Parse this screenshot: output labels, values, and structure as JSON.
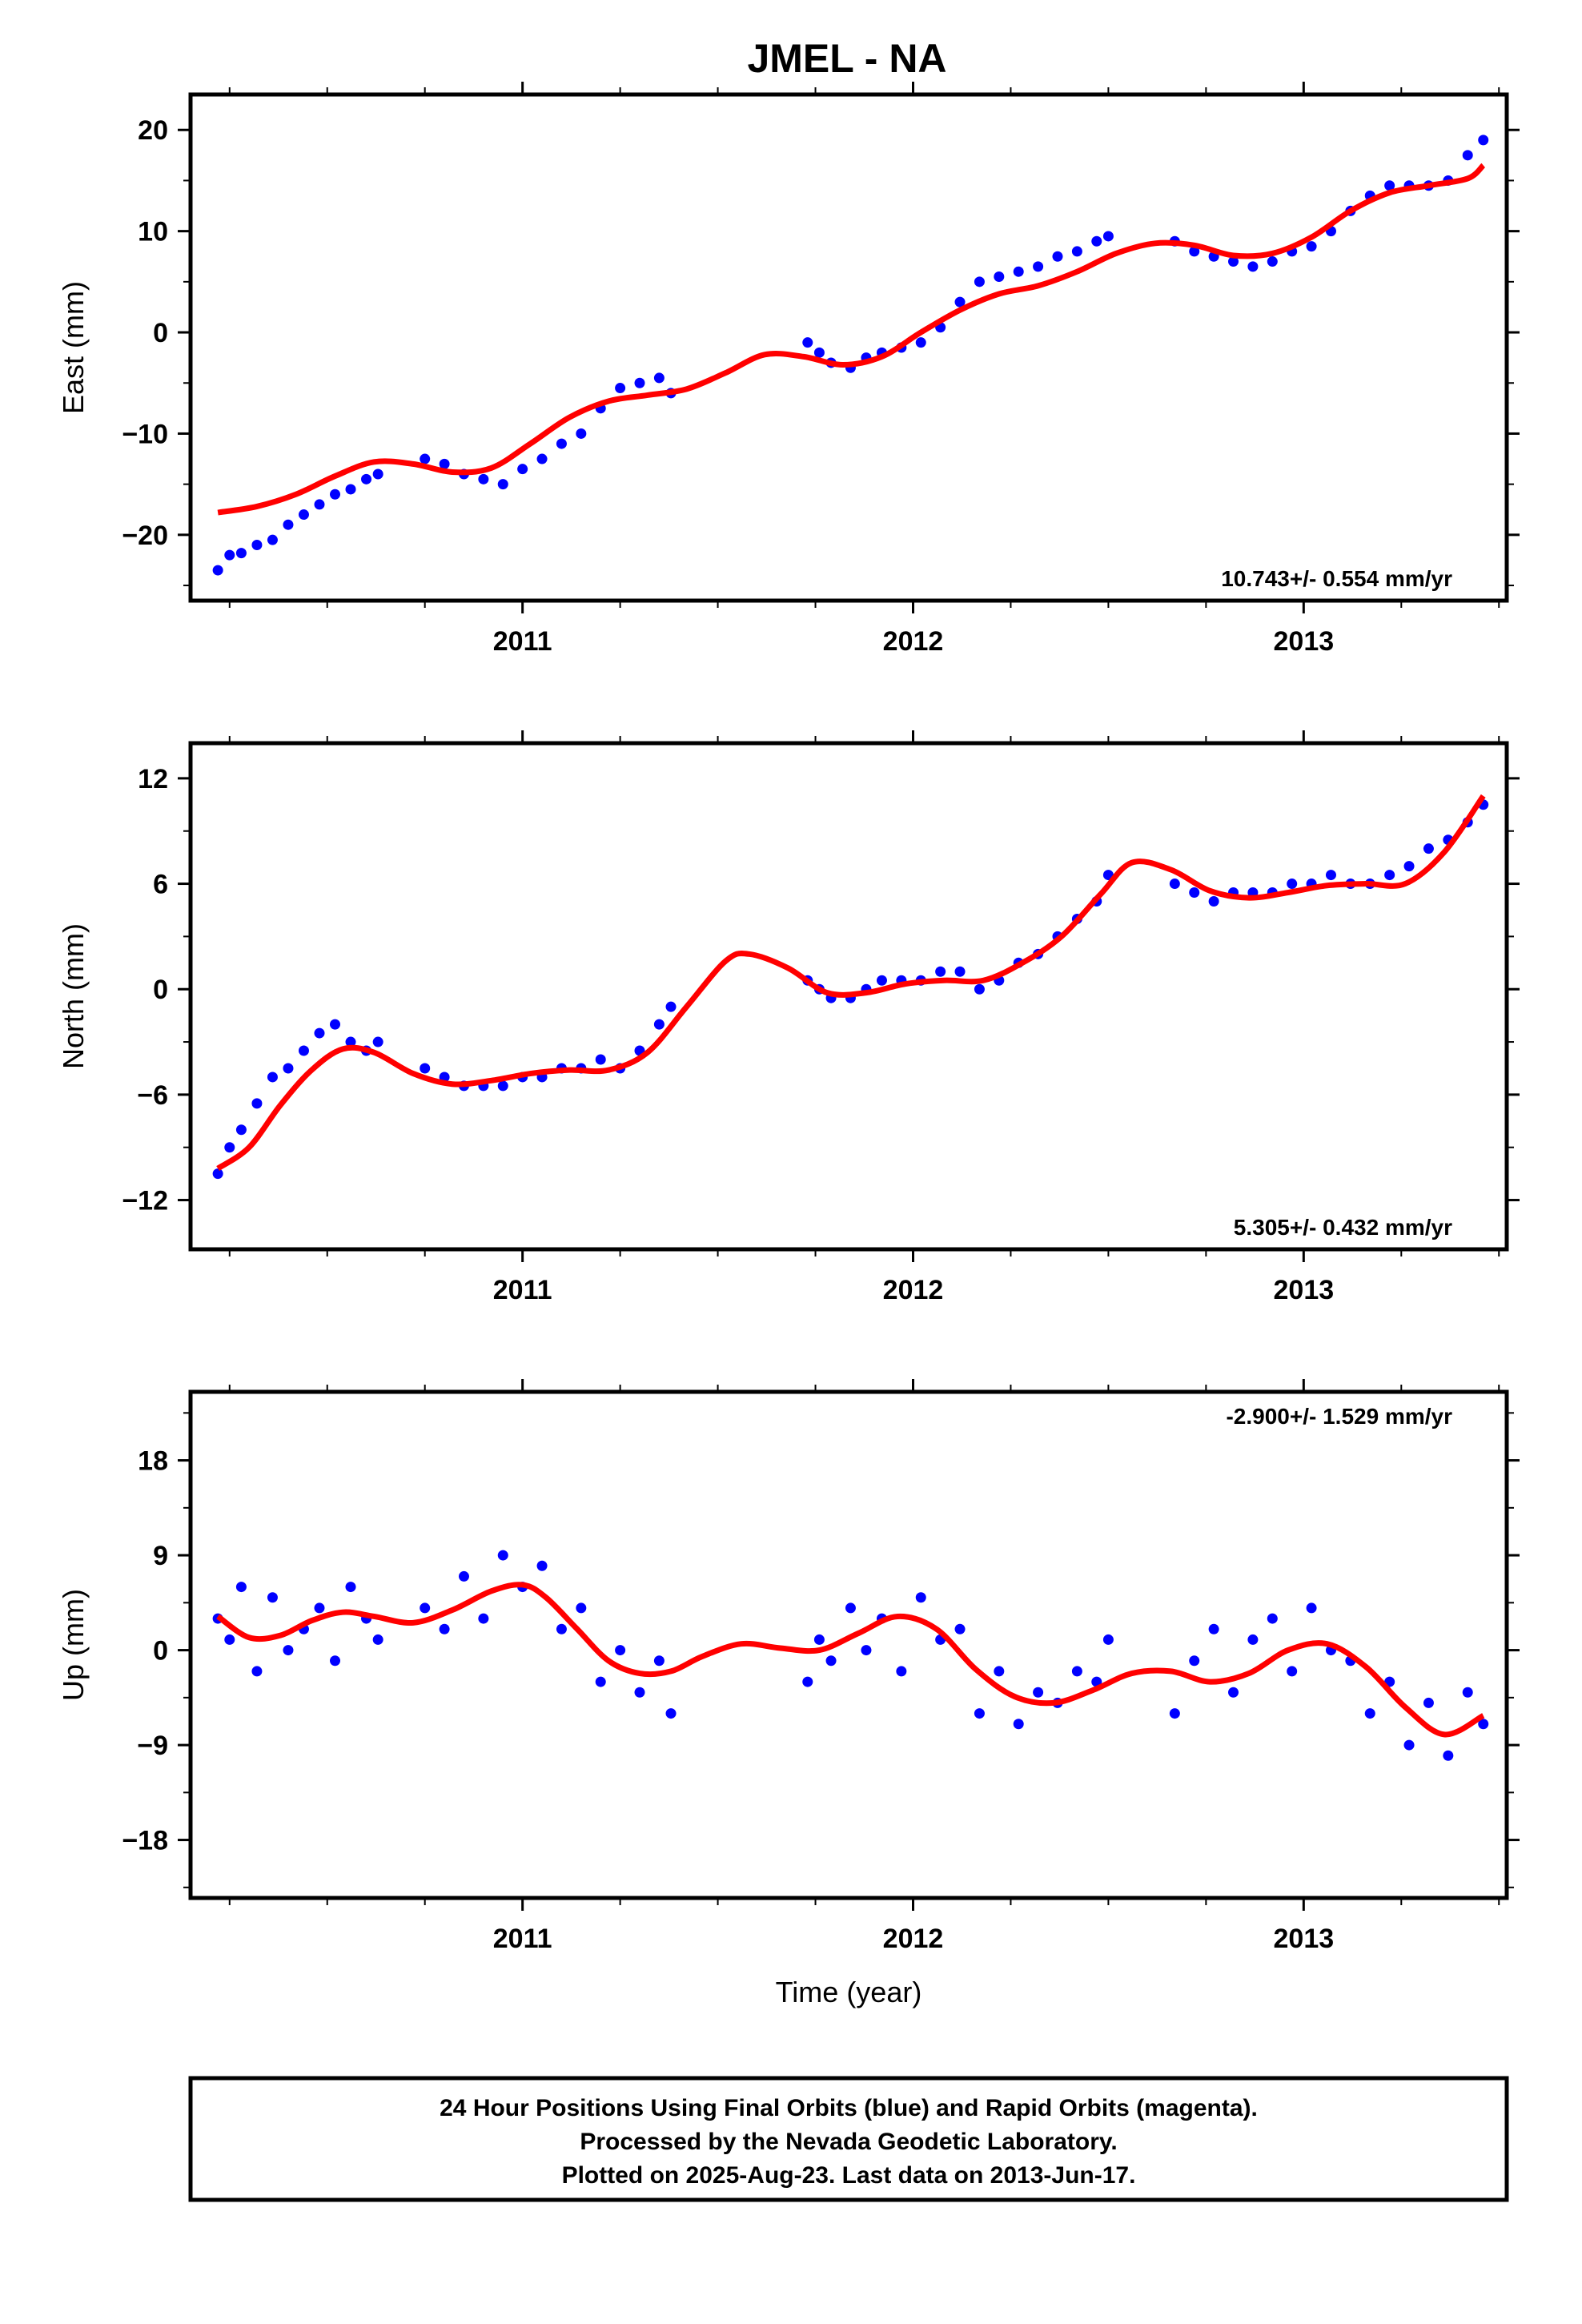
{
  "chart_data": [
    {
      "type": "scatter",
      "title": "JMEL - NA",
      "ylabel": "East (mm)",
      "xlabel": "",
      "xlim": [
        2010.15,
        2013.52
      ],
      "ylim": [
        -26.5,
        23.5
      ],
      "xticks": [
        2011,
        2012,
        2013
      ],
      "xtick_labels": [
        "2011",
        "2012",
        "2013"
      ],
      "yticks": [
        -20,
        -10,
        0,
        10,
        20
      ],
      "ytick_labels": [
        "−20",
        "−10",
        "0",
        "10",
        "20"
      ],
      "rate_label": "10.743+/- 0.554 mm/yr",
      "rate_position": "bottom-right",
      "series": [
        {
          "color": "#0000ff",
          "x": [
            2010.22,
            2010.25,
            2010.28,
            2010.32,
            2010.36,
            2010.4,
            2010.44,
            2010.48,
            2010.52,
            2010.56,
            2010.6,
            2010.63,
            2010.75,
            2010.8,
            2010.85,
            2010.9,
            2010.95,
            2011.0,
            2011.05,
            2011.1,
            2011.15,
            2011.2,
            2011.25,
            2011.3,
            2011.35,
            2011.38,
            2011.73,
            2011.76,
            2011.79,
            2011.84,
            2011.88,
            2011.92,
            2011.97,
            2012.02,
            2012.07,
            2012.12,
            2012.17,
            2012.22,
            2012.27,
            2012.32,
            2012.37,
            2012.42,
            2012.47,
            2012.5,
            2012.67,
            2012.72,
            2012.77,
            2012.82,
            2012.87,
            2012.92,
            2012.97,
            2013.02,
            2013.07,
            2013.12,
            2013.17,
            2013.22,
            2013.27,
            2013.32,
            2013.37,
            2013.42,
            2013.46
          ],
          "y": [
            -23.5,
            -22.0,
            -21.8,
            -21.0,
            -20.5,
            -19.0,
            -18.0,
            -17.0,
            -16.0,
            -15.5,
            -14.5,
            -14.0,
            -12.5,
            -13.0,
            -14.0,
            -14.5,
            -15.0,
            -13.5,
            -12.5,
            -11.0,
            -10.0,
            -7.5,
            -5.5,
            -5.0,
            -4.5,
            -6.0,
            -1.0,
            -2.0,
            -3.0,
            -3.5,
            -2.5,
            -2.0,
            -1.5,
            -1.0,
            0.5,
            3.0,
            5.0,
            5.5,
            6.0,
            6.5,
            7.5,
            8.0,
            9.0,
            9.5,
            9.0,
            8.0,
            7.5,
            7.0,
            6.5,
            7.0,
            8.0,
            8.5,
            10.0,
            12.0,
            13.5,
            14.5,
            14.5,
            14.5,
            15.0,
            17.5,
            19.0
          ]
        },
        {
          "color": "#ff0000",
          "x": [
            2010.22,
            2010.32,
            2010.42,
            2010.52,
            2010.62,
            2010.72,
            2010.82,
            2010.92,
            2011.02,
            2011.12,
            2011.22,
            2011.32,
            2011.42,
            2011.52,
            2011.62,
            2011.72,
            2011.82,
            2011.92,
            2012.02,
            2012.12,
            2012.22,
            2012.32,
            2012.42,
            2012.52,
            2012.62,
            2012.72,
            2012.82,
            2012.92,
            2013.02,
            2013.12,
            2013.22,
            2013.32,
            2013.42,
            2013.46
          ],
          "y": [
            -17.8,
            -17.2,
            -16.0,
            -14.2,
            -12.8,
            -13.0,
            -13.8,
            -13.4,
            -11.0,
            -8.4,
            -6.8,
            -6.2,
            -5.6,
            -4.0,
            -2.2,
            -2.4,
            -3.2,
            -2.4,
            0.0,
            2.2,
            3.8,
            4.6,
            6.0,
            7.8,
            8.8,
            8.6,
            7.6,
            7.8,
            9.4,
            12.0,
            13.8,
            14.5,
            15.2,
            16.5
          ]
        }
      ]
    },
    {
      "type": "scatter",
      "title": "",
      "ylabel": "North (mm)",
      "xlabel": "",
      "xlim": [
        2010.15,
        2013.52
      ],
      "ylim": [
        -14.8,
        14.0
      ],
      "xticks": [
        2011,
        2012,
        2013
      ],
      "xtick_labels": [
        "2011",
        "2012",
        "2013"
      ],
      "yticks": [
        -12,
        -6,
        0,
        6,
        12
      ],
      "ytick_labels": [
        "−12",
        "−6",
        "0",
        "6",
        "12"
      ],
      "rate_label": "5.305+/- 0.432 mm/yr",
      "rate_position": "bottom-right",
      "series": [
        {
          "color": "#0000ff",
          "x": [
            2010.22,
            2010.25,
            2010.28,
            2010.32,
            2010.36,
            2010.4,
            2010.44,
            2010.48,
            2010.52,
            2010.56,
            2010.6,
            2010.63,
            2010.75,
            2010.8,
            2010.85,
            2010.9,
            2010.95,
            2011.0,
            2011.05,
            2011.1,
            2011.15,
            2011.2,
            2011.25,
            2011.3,
            2011.35,
            2011.38,
            2011.73,
            2011.76,
            2011.79,
            2011.84,
            2011.88,
            2011.92,
            2011.97,
            2012.02,
            2012.07,
            2012.12,
            2012.17,
            2012.22,
            2012.27,
            2012.32,
            2012.37,
            2012.42,
            2012.47,
            2012.5,
            2012.67,
            2012.72,
            2012.77,
            2012.82,
            2012.87,
            2012.92,
            2012.97,
            2013.02,
            2013.07,
            2013.12,
            2013.17,
            2013.22,
            2013.27,
            2013.32,
            2013.37,
            2013.42,
            2013.46
          ],
          "y": [
            -10.5,
            -9.0,
            -8.0,
            -6.5,
            -5.0,
            -4.5,
            -3.5,
            -2.5,
            -2.0,
            -3.0,
            -3.5,
            -3.0,
            -4.5,
            -5.0,
            -5.5,
            -5.5,
            -5.5,
            -5.0,
            -5.0,
            -4.5,
            -4.5,
            -4.0,
            -4.5,
            -3.5,
            -2.0,
            -1.0,
            0.5,
            0.0,
            -0.5,
            -0.5,
            0.0,
            0.5,
            0.5,
            0.5,
            1.0,
            1.0,
            0.0,
            0.5,
            1.5,
            2.0,
            3.0,
            4.0,
            5.0,
            6.5,
            6.0,
            5.5,
            5.0,
            5.5,
            5.5,
            5.5,
            6.0,
            6.0,
            6.5,
            6.0,
            6.0,
            6.5,
            7.0,
            8.0,
            8.5,
            9.5,
            10.5
          ]
        },
        {
          "color": "#ff0000",
          "x": [
            2010.22,
            2010.3,
            2010.38,
            2010.46,
            2010.54,
            2010.62,
            2010.72,
            2010.82,
            2010.92,
            2011.02,
            2011.12,
            2011.22,
            2011.32,
            2011.42,
            2011.52,
            2011.58,
            2011.68,
            2011.78,
            2011.88,
            2011.98,
            2012.08,
            2012.18,
            2012.28,
            2012.38,
            2012.48,
            2012.56,
            2012.66,
            2012.76,
            2012.86,
            2012.96,
            2013.06,
            2013.16,
            2013.26,
            2013.36,
            2013.46
          ],
          "y": [
            -10.2,
            -9.0,
            -6.6,
            -4.6,
            -3.4,
            -3.6,
            -4.8,
            -5.4,
            -5.2,
            -4.8,
            -4.6,
            -4.6,
            -3.6,
            -1.0,
            1.6,
            2.0,
            1.2,
            -0.2,
            -0.2,
            0.3,
            0.5,
            0.5,
            1.5,
            3.0,
            5.4,
            7.2,
            6.8,
            5.6,
            5.2,
            5.5,
            5.9,
            6.0,
            6.0,
            7.8,
            11.0
          ]
        }
      ]
    },
    {
      "type": "scatter",
      "title": "",
      "ylabel": "Up (mm)",
      "xlabel": "Time (year)",
      "xlim": [
        2010.15,
        2013.52
      ],
      "ylim": [
        -23.5,
        24.5
      ],
      "xticks": [
        2011,
        2012,
        2013
      ],
      "xtick_labels": [
        "2011",
        "2012",
        "2013"
      ],
      "yticks": [
        -18,
        -9,
        0,
        9,
        18
      ],
      "ytick_labels": [
        "−18",
        "−9",
        "0",
        "9",
        "18"
      ],
      "rate_label": "-2.900+/- 1.529 mm/yr",
      "rate_position": "top-right",
      "series": [
        {
          "color": "#0000ff",
          "x": [
            2010.22,
            2010.25,
            2010.28,
            2010.32,
            2010.36,
            2010.4,
            2010.44,
            2010.48,
            2010.52,
            2010.56,
            2010.6,
            2010.63,
            2010.75,
            2010.8,
            2010.85,
            2010.9,
            2010.95,
            2011.0,
            2011.05,
            2011.1,
            2011.15,
            2011.2,
            2011.25,
            2011.3,
            2011.35,
            2011.38,
            2011.73,
            2011.76,
            2011.79,
            2011.84,
            2011.88,
            2011.92,
            2011.97,
            2012.02,
            2012.07,
            2012.12,
            2012.17,
            2012.22,
            2012.27,
            2012.32,
            2012.37,
            2012.42,
            2012.47,
            2012.5,
            2012.67,
            2012.72,
            2012.77,
            2012.82,
            2012.87,
            2012.92,
            2012.97,
            2013.02,
            2013.07,
            2013.12,
            2013.17,
            2013.22,
            2013.27,
            2013.32,
            2013.37,
            2013.42,
            2013.46
          ],
          "y": [
            3.0,
            1.0,
            6.0,
            -2.0,
            5.0,
            0.0,
            2.0,
            4.0,
            -1.0,
            6.0,
            3.0,
            1.0,
            4.0,
            2.0,
            7.0,
            3.0,
            9.0,
            6.0,
            8.0,
            2.0,
            4.0,
            -3.0,
            0.0,
            -4.0,
            -1.0,
            -6.0,
            -3.0,
            1.0,
            -1.0,
            4.0,
            0.0,
            3.0,
            -2.0,
            5.0,
            1.0,
            2.0,
            -6.0,
            -2.0,
            -7.0,
            -4.0,
            -5.0,
            -2.0,
            -3.0,
            1.0,
            -6.0,
            -1.0,
            2.0,
            -4.0,
            1.0,
            3.0,
            -2.0,
            4.0,
            0.0,
            -1.0,
            -6.0,
            -3.0,
            -9.0,
            -5.0,
            -10.0,
            -4.0,
            -7.0
          ]
        },
        {
          "color": "#ff0000",
          "x": [
            2010.22,
            2010.3,
            2010.38,
            2010.46,
            2010.54,
            2010.62,
            2010.72,
            2010.82,
            2010.92,
            2011.0,
            2011.06,
            2011.14,
            2011.22,
            2011.3,
            2011.38,
            2011.46,
            2011.56,
            2011.66,
            2011.76,
            2011.86,
            2011.96,
            2012.06,
            2012.16,
            2012.26,
            2012.36,
            2012.46,
            2012.56,
            2012.66,
            2012.76,
            2012.86,
            2012.96,
            2013.06,
            2013.16,
            2013.26,
            2013.36,
            2013.46
          ],
          "y": [
            3.2,
            1.2,
            1.4,
            2.8,
            3.6,
            3.2,
            2.6,
            3.8,
            5.6,
            6.2,
            5.0,
            2.0,
            -1.0,
            -2.2,
            -2.0,
            -0.6,
            0.6,
            0.2,
            0.0,
            1.6,
            3.2,
            2.0,
            -1.8,
            -4.4,
            -5.0,
            -3.8,
            -2.2,
            -2.0,
            -3.0,
            -2.2,
            0.0,
            0.6,
            -1.6,
            -5.4,
            -8.0,
            -6.2
          ]
        }
      ]
    }
  ],
  "footer": {
    "line1": "24 Hour Positions Using Final Orbits (blue) and Rapid Orbits (magenta).",
    "line2": "Processed by the Nevada Geodetic Laboratory.",
    "line3": "Plotted on 2025-Aug-23. Last data on 2013-Jun-17."
  }
}
